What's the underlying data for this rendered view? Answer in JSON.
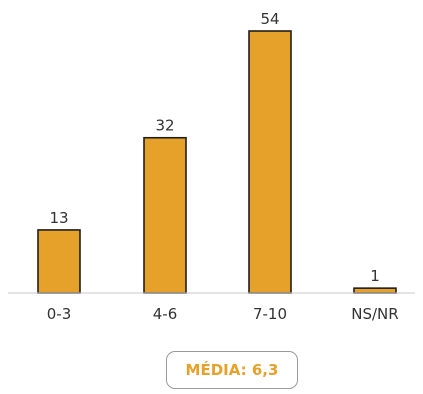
{
  "chart_data": {
    "type": "bar",
    "categories": [
      "0-3",
      "4-6",
      "7-10",
      "NS/NR"
    ],
    "values": [
      13,
      32,
      54,
      1
    ],
    "value_labels": [
      "13",
      "32",
      "54",
      "1"
    ],
    "title": "",
    "xlabel": "",
    "ylabel": "",
    "ylim": [
      0,
      54
    ],
    "grid": false,
    "legend": "none",
    "bar_color": "#e6a12a",
    "bar_outline_color": "#1f1f1f"
  },
  "summary": {
    "mean_label": "MÉDIA: 6,3"
  }
}
